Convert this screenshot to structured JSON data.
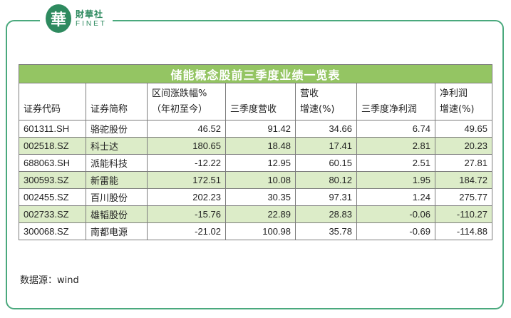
{
  "logo": {
    "mark": "華",
    "name_cn": "財華社",
    "name_en": "FINET"
  },
  "table": {
    "title": "储能概念股前三季度业绩一览表",
    "columns": [
      [
        "证券代码"
      ],
      [
        "证券简称"
      ],
      [
        "区间涨跌幅%",
        "（年初至今）"
      ],
      [
        "三季度营收"
      ],
      [
        "营收",
        "增速(%)"
      ],
      [
        "三季度净利润"
      ],
      [
        "净利润",
        "增速(%)"
      ]
    ],
    "rows": [
      [
        "601311.SH",
        "骆驼股份",
        "46.52",
        "91.42",
        "34.66",
        "6.74",
        "49.65"
      ],
      [
        "002518.SZ",
        "科士达",
        "180.65",
        "18.48",
        "17.41",
        "2.81",
        "20.23"
      ],
      [
        "688063.SH",
        "派能科技",
        "-12.22",
        "12.95",
        "60.15",
        "2.51",
        "27.81"
      ],
      [
        "300593.SZ",
        "新雷能",
        "172.51",
        "10.08",
        "80.12",
        "1.95",
        "184.72"
      ],
      [
        "002455.SZ",
        "百川股份",
        "202.23",
        "30.35",
        "97.31",
        "1.24",
        "275.77"
      ],
      [
        "002733.SZ",
        "雄韬股份",
        "-15.76",
        "22.89",
        "28.83",
        "-0.06",
        "-110.27"
      ],
      [
        "300068.SZ",
        "南都电源",
        "-21.02",
        "100.98",
        "35.78",
        "-0.69",
        "-114.88"
      ]
    ]
  },
  "source": "数据源：wind",
  "colors": {
    "accent": "#4aa97d",
    "title_bg": "#94c563",
    "stripe": "#dcecc8"
  }
}
